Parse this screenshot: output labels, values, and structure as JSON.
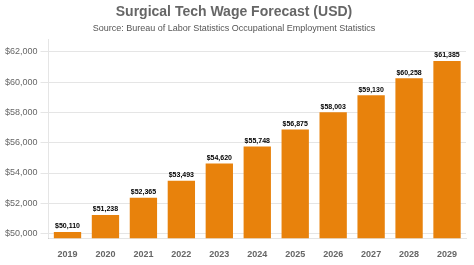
{
  "chart_data": {
    "type": "bar",
    "title": "Surgical Tech Wage Forecast (USD)",
    "subtitle": "Source: Bureau of Labor Statistics Occupational Employment Statistics",
    "categories": [
      "2019",
      "2020",
      "2021",
      "2022",
      "2023",
      "2024",
      "2025",
      "2026",
      "2027",
      "2028",
      "2029"
    ],
    "values": [
      50110,
      51238,
      52365,
      53493,
      54620,
      55748,
      56875,
      58003,
      59130,
      60258,
      61385
    ],
    "value_labels": [
      "$50,110",
      "$51,238",
      "$52,365",
      "$53,493",
      "$54,620",
      "$55,748",
      "$56,875",
      "$58,003",
      "$59,130",
      "$60,258",
      "$61,385"
    ],
    "data_labels": true,
    "color": "#E8820C",
    "ylim": [
      49700,
      62800
    ],
    "yticks": [
      {
        "value": 50000,
        "label": "$50,000"
      },
      {
        "value": 52000,
        "label": "$52,000"
      },
      {
        "value": 54000,
        "label": "$54,000"
      },
      {
        "value": 56000,
        "label": "$56,000"
      },
      {
        "value": 58000,
        "label": "$58,000"
      },
      {
        "value": 60000,
        "label": "$60,000"
      },
      {
        "value": 62000,
        "label": "$62,000"
      }
    ],
    "grid": true
  }
}
